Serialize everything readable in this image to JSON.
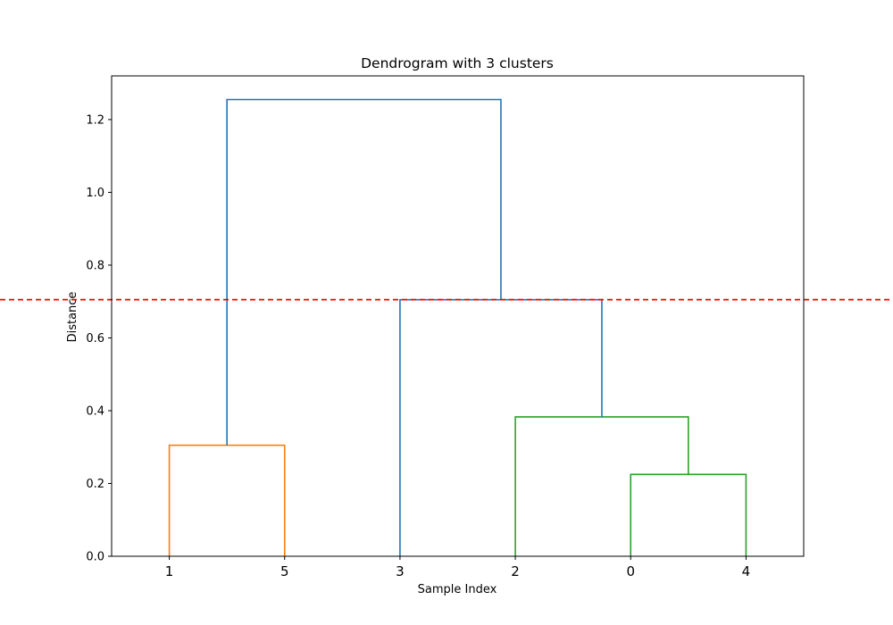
{
  "chart_data": {
    "type": "dendrogram",
    "title": "Dendrogram with 3 clusters",
    "xlabel": "Sample Index",
    "ylabel": "Distance",
    "ylim": [
      0,
      1.32
    ],
    "yticks": [
      "0.0",
      "0.2",
      "0.4",
      "0.6",
      "0.8",
      "1.0",
      "1.2"
    ],
    "leaves": [
      "1",
      "5",
      "3",
      "2",
      "0",
      "4"
    ],
    "threshold": {
      "value": 0.705,
      "color": "#ff0000",
      "style": "dashed"
    },
    "links": [
      {
        "left": "1",
        "right": "5",
        "height": 0.305,
        "color": "#ff7f0e"
      },
      {
        "left": "0",
        "right": "4",
        "height": 0.225,
        "color": "#2ca02c"
      },
      {
        "left": "2",
        "right": "{0,4}",
        "height": 0.383,
        "color": "#2ca02c"
      },
      {
        "left": "3",
        "right": "{2,0,4}",
        "height": 0.705,
        "color": "#1f77b4"
      },
      {
        "left": "{1,5}",
        "right": "{3,2,0,4}",
        "height": 1.255,
        "color": "#1f77b4"
      }
    ],
    "grid": false,
    "legend": "none"
  }
}
